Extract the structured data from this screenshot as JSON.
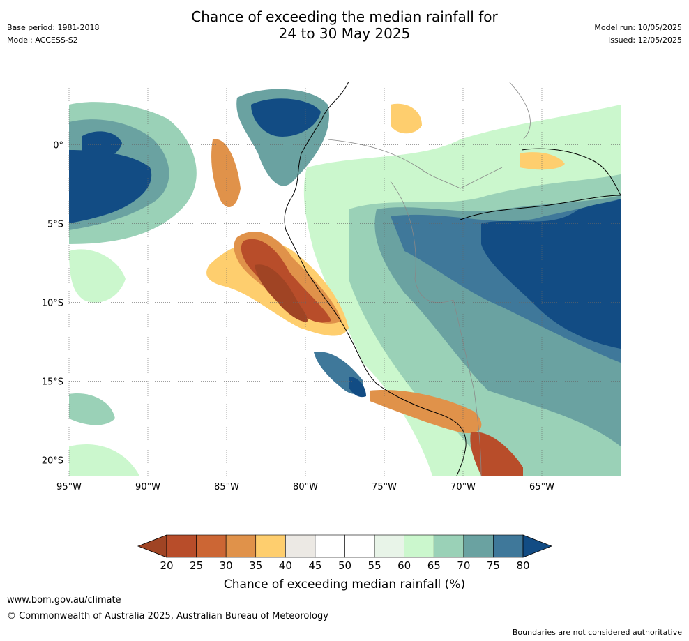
{
  "title": {
    "line1": "Chance of exceeding the median rainfall for",
    "line2": "24 to 30 May 2025"
  },
  "meta_left": {
    "base_period": "Base period: 1981-2018",
    "model": "Model: ACCESS-S2"
  },
  "meta_right": {
    "model_run": "Model run: 10/05/2025",
    "issued": "Issued: 12/05/2025"
  },
  "map": {
    "lat_labels": [
      "0°",
      "5°S",
      "10°S",
      "15°S",
      "20°S"
    ],
    "lon_labels": [
      "95°W",
      "90°W",
      "85°W",
      "80°W",
      "75°W",
      "70°W",
      "65°W"
    ],
    "lat_values": [
      0,
      -5,
      -10,
      -15,
      -20
    ],
    "lon_values": [
      -95,
      -90,
      -85,
      -80,
      -75,
      -70,
      -65
    ],
    "extent": {
      "lon": [
        -95,
        -60
      ],
      "lat": [
        -21,
        4
      ]
    }
  },
  "legend": {
    "title": "Chance of exceeding median rainfall (%)",
    "ticks": [
      "20",
      "25",
      "30",
      "35",
      "40",
      "45",
      "50",
      "55",
      "60",
      "65",
      "70",
      "75",
      "80"
    ],
    "colors": [
      "#a04424",
      "#b84d2a",
      "#cc6634",
      "#e0924a",
      "#fece6e",
      "#ece9e4",
      "#ffffff",
      "#ffffff",
      "#e8f4e8",
      "#cbf7cd",
      "#9ad1b7",
      "#6aa2a1",
      "#3f789a",
      "#124c84"
    ]
  },
  "footer": {
    "url": "www.bom.gov.au/climate",
    "copyright": "© Commonwealth of Australia 2025, Australian Bureau of Meteorology",
    "note": "Boundaries are not considered authoritative"
  }
}
